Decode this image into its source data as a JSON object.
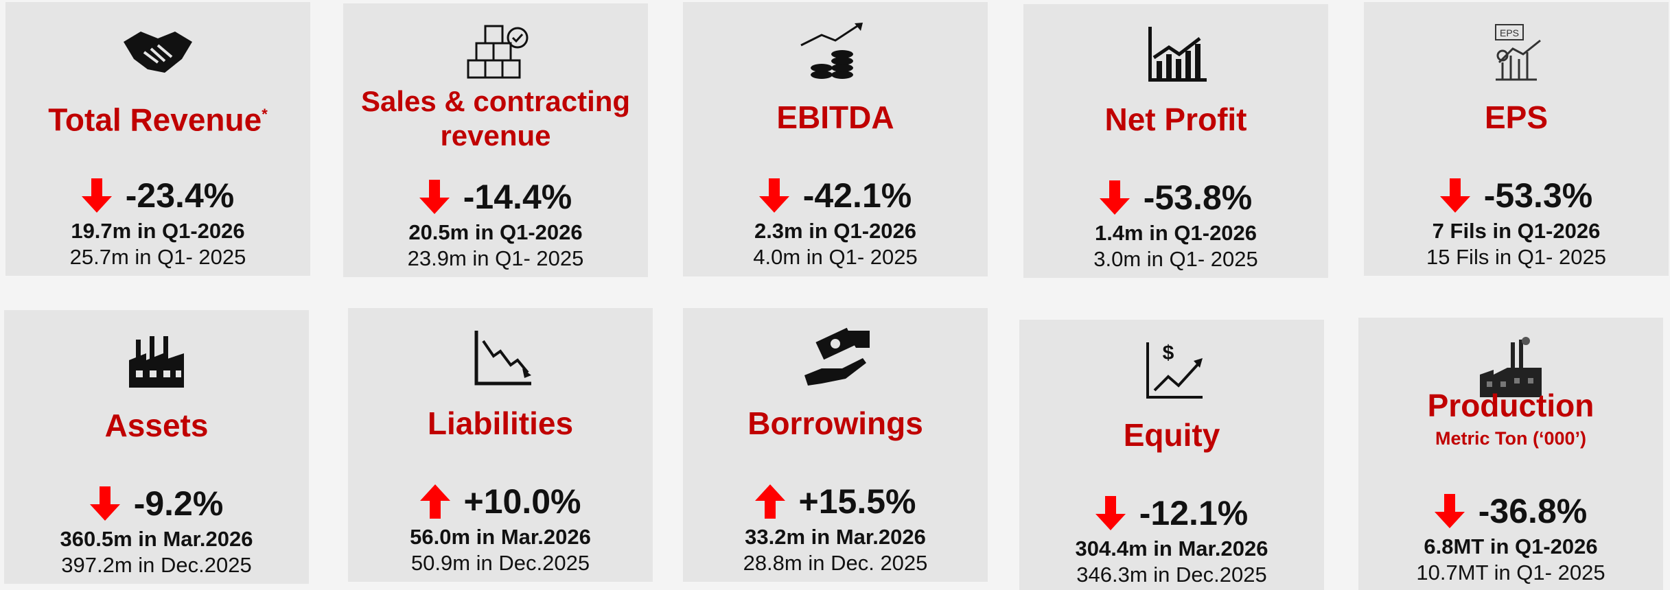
{
  "cards": [
    {
      "title": "Total Revenue",
      "superscript": "*",
      "trend": "down",
      "change": "-23.4%",
      "current": "19.7m in Q1-2026",
      "previous": "25.7m in Q1- 2025"
    },
    {
      "title": "Sales & contracting revenue",
      "trend": "down",
      "change": "-14.4%",
      "current": "20.5m in Q1-2026",
      "previous": "23.9m in Q1- 2025"
    },
    {
      "title": "EBITDA",
      "trend": "down",
      "change": "-42.1%",
      "current": "2.3m in Q1-2026",
      "previous": "4.0m in Q1- 2025"
    },
    {
      "title": "Net Profit",
      "trend": "down",
      "change": "-53.8%",
      "current": "1.4m in Q1-2026",
      "previous": "3.0m in Q1- 2025"
    },
    {
      "title": "EPS",
      "icon_text": "EPS",
      "trend": "down",
      "change": "-53.3%",
      "current": "7 Fils in Q1-2026",
      "previous": "15 Fils in Q1- 2025"
    },
    {
      "title": "Assets",
      "trend": "down",
      "change": "-9.2%",
      "current": "360.5m in Mar.2026",
      "previous": "397.2m in Dec.2025"
    },
    {
      "title": "Liabilities",
      "trend": "up",
      "change": "+10.0%",
      "current": "56.0m in Mar.2026",
      "previous": "50.9m in Dec.2025"
    },
    {
      "title": "Borrowings",
      "trend": "up",
      "change": "+15.5%",
      "current": "33.2m in Mar.2026",
      "previous": "28.8m in Dec. 2025"
    },
    {
      "title": "Equity",
      "icon_text": "$",
      "trend": "down",
      "change": "-12.1%",
      "current": "304.4m in Mar.2026",
      "previous": "346.3m in Dec.2025"
    },
    {
      "title": "Production",
      "subtitle": "Metric Ton (‘000’)",
      "trend": "down",
      "change": "-36.8%",
      "current": "6.8MT in Q1-2026",
      "previous": "10.7MT in Q1- 2025"
    }
  ]
}
